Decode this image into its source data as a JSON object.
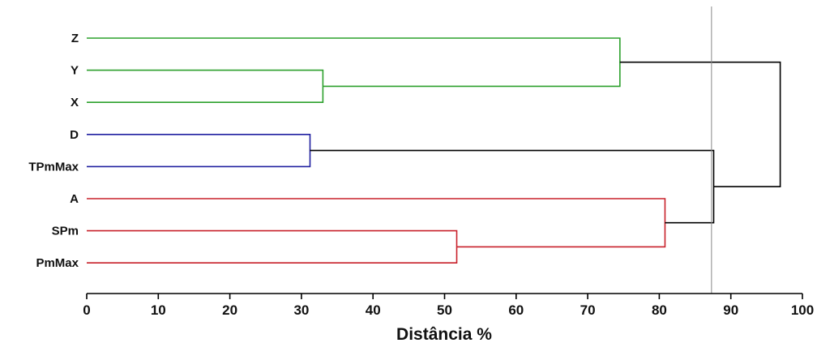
{
  "chart_data": {
    "type": "dendrogram",
    "xlabel": "Distância %",
    "xlim": [
      0,
      100
    ],
    "xticks": [
      0,
      10,
      20,
      30,
      40,
      50,
      60,
      70,
      80,
      90,
      100
    ],
    "cutoff": 87.3,
    "colors": {
      "green": "#2ca02c",
      "blue": "#1f1fa0",
      "red": "#c8202a",
      "black": "#000000",
      "cutoff": "#888888"
    },
    "leaves": [
      {
        "name": "Z",
        "color": "green"
      },
      {
        "name": "Y",
        "color": "green"
      },
      {
        "name": "X",
        "color": "green"
      },
      {
        "name": "D",
        "color": "blue"
      },
      {
        "name": "TPmMax",
        "color": "blue"
      },
      {
        "name": "A",
        "color": "red"
      },
      {
        "name": "SPm",
        "color": "red"
      },
      {
        "name": "PmMax",
        "color": "red"
      }
    ],
    "merges": [
      {
        "id": "m1",
        "children": [
          "D",
          "TPmMax"
        ],
        "height": 31.2,
        "color": "blue"
      },
      {
        "id": "m2",
        "children": [
          "Y",
          "X"
        ],
        "height": 33.0,
        "color": "green"
      },
      {
        "id": "m3",
        "children": [
          "SPm",
          "PmMax"
        ],
        "height": 51.7,
        "color": "red"
      },
      {
        "id": "m4",
        "children": [
          "Z",
          "m2"
        ],
        "height": 74.5,
        "color": "green"
      },
      {
        "id": "m5",
        "children": [
          "A",
          "m3"
        ],
        "height": 80.8,
        "color": "red"
      },
      {
        "id": "m6",
        "children": [
          "m1",
          "m5"
        ],
        "height": 87.6,
        "color": "black"
      },
      {
        "id": "m7",
        "children": [
          "m4",
          "m6"
        ],
        "height": 96.9,
        "color": "black"
      }
    ]
  }
}
